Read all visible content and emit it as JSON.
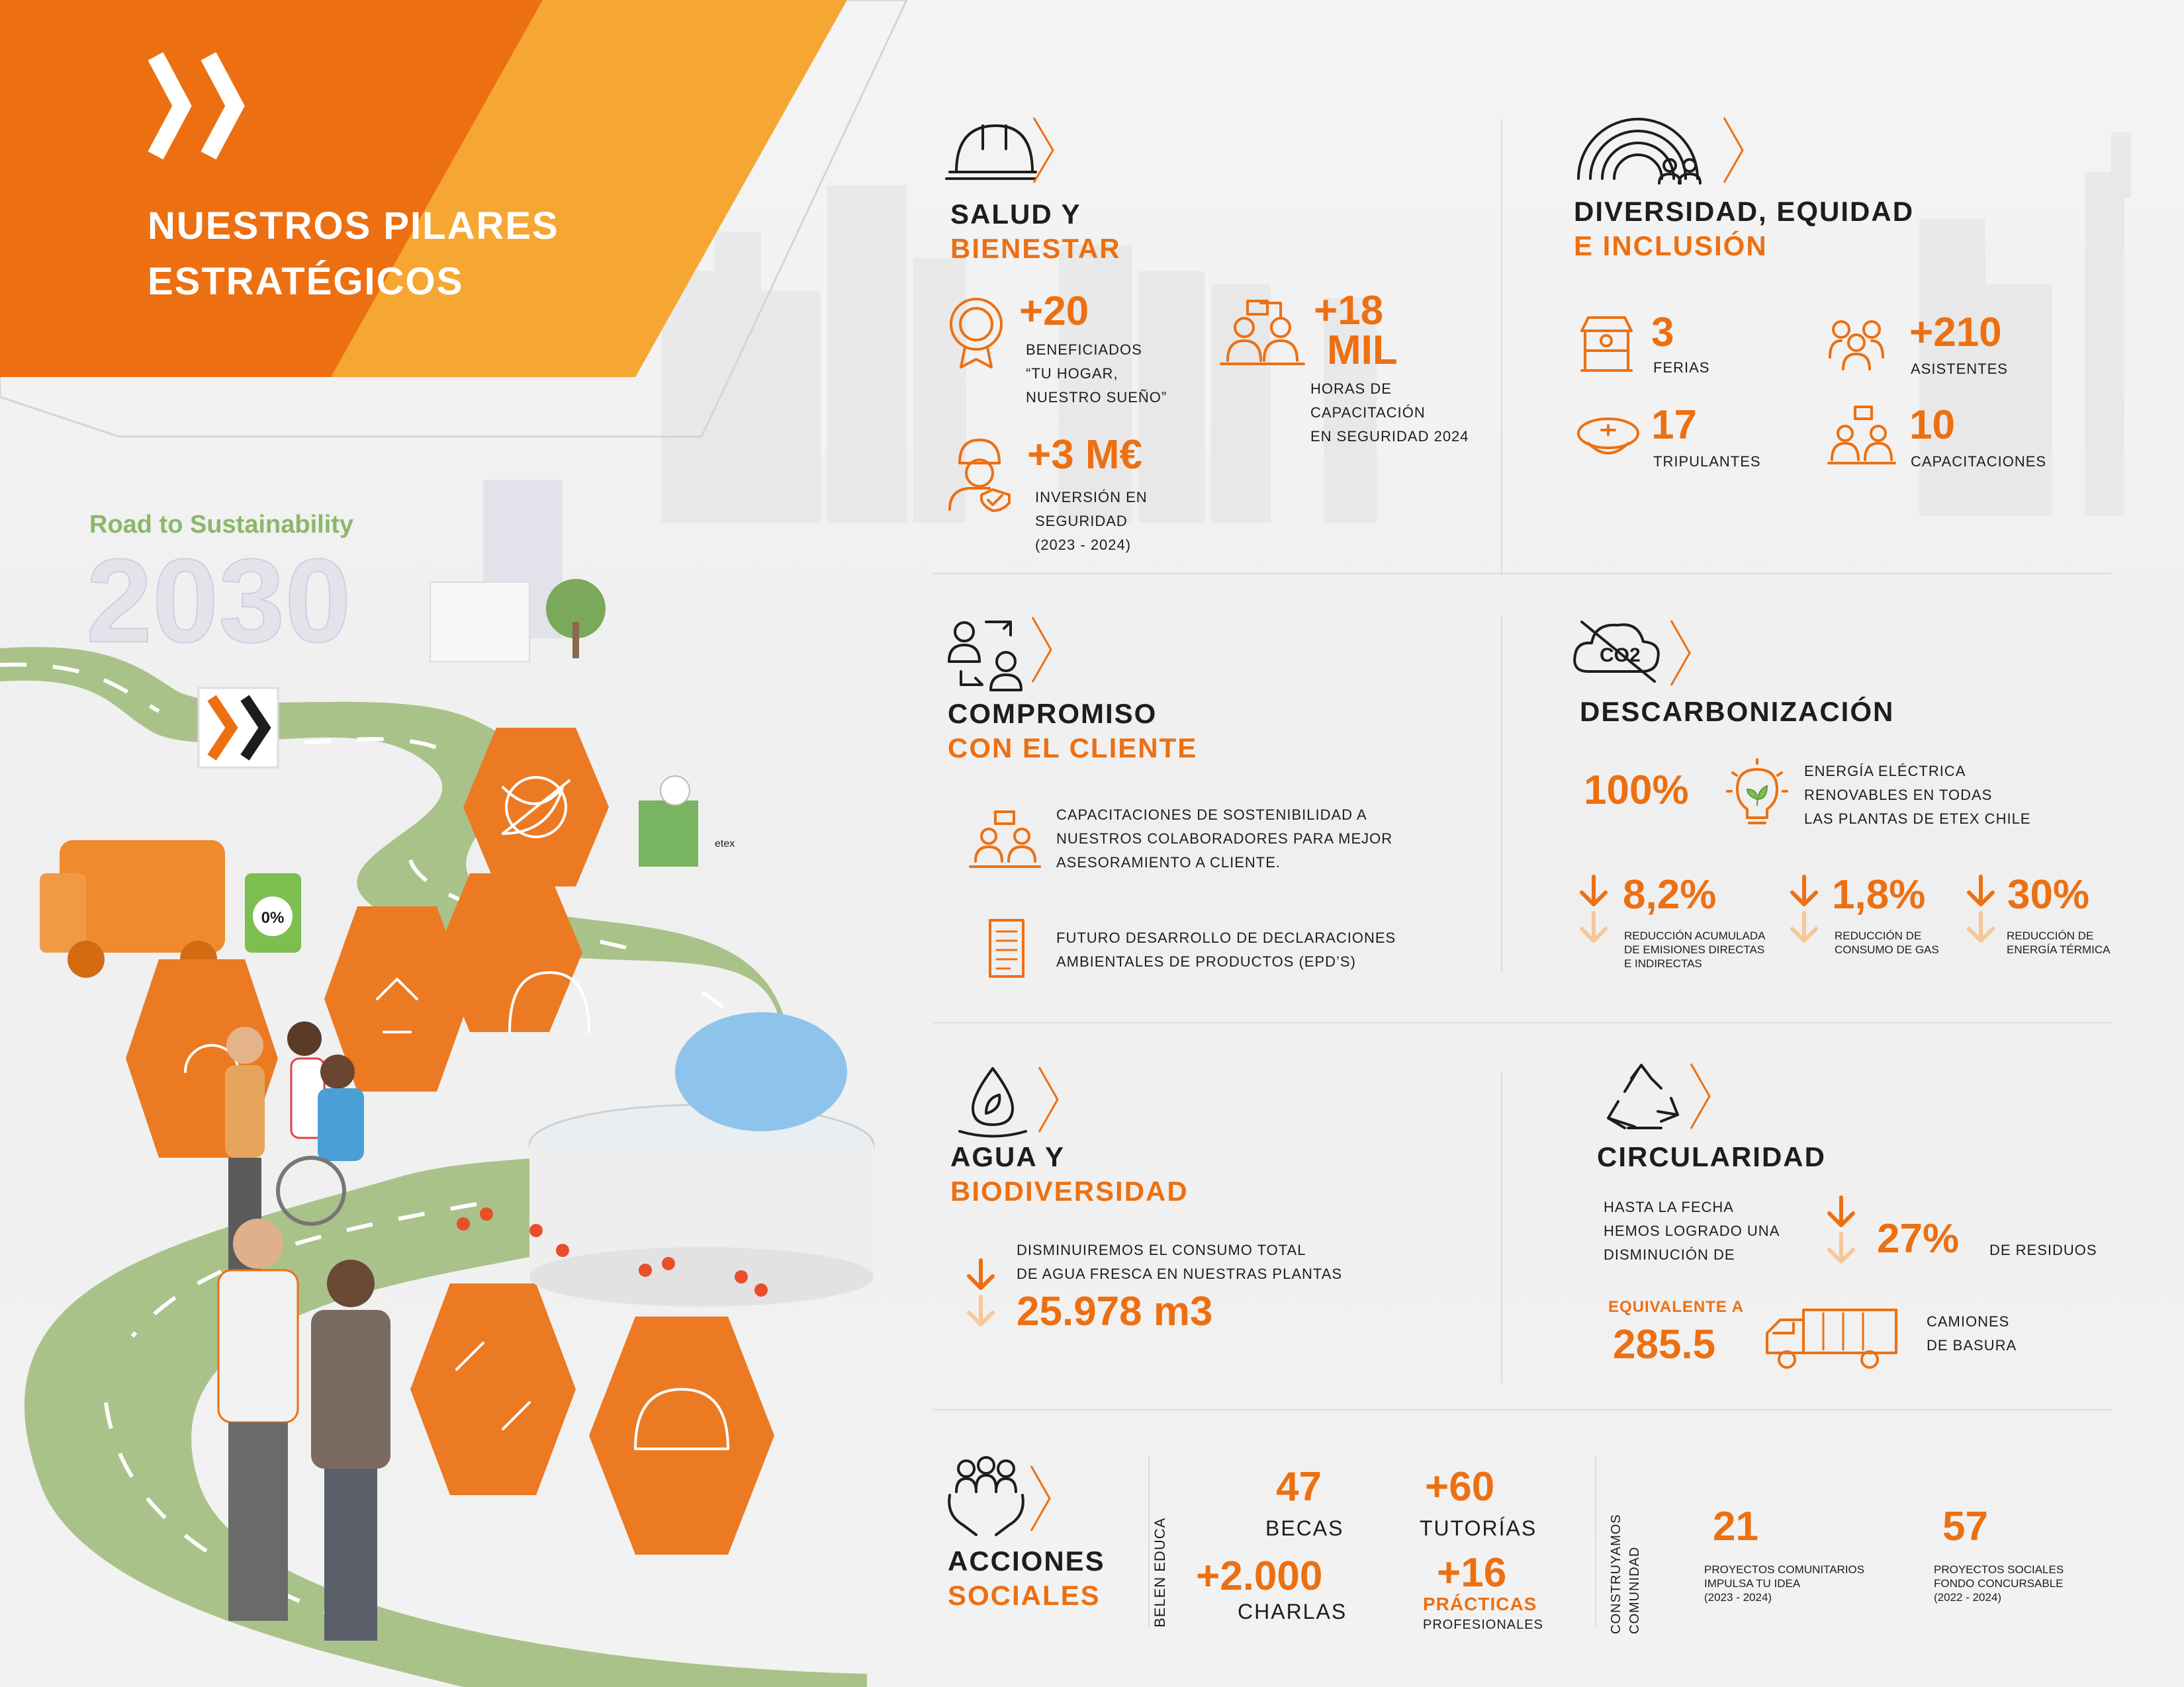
{
  "header": {
    "title_line1": "NUESTROS PILARES",
    "title_line2": "ESTRATÉGICOS"
  },
  "road": {
    "tag_line1": "Road to Sustainability",
    "tag_year": "2030",
    "bin_label": "0%",
    "co2_label": "CO2",
    "factory_label": "etex"
  },
  "salud": {
    "title_dark": "SALUD Y",
    "title_orange": "BIENESTAR",
    "stat1_value": "+20",
    "stat1_l1": "BENEFICIADOS",
    "stat1_l2": "“TU HOGAR,",
    "stat1_l3": "NUESTRO SUEÑO”",
    "stat2_value_l1": "+18",
    "stat2_value_l2": "MIL",
    "stat2_l1": "HORAS DE",
    "stat2_l2": "CAPACITACIÓN",
    "stat2_l3": "EN SEGURIDAD 2024",
    "stat3_value": "+3 M€",
    "stat3_l1": "INVERSIÓN EN",
    "stat3_l2": "SEGURIDAD",
    "stat3_l3": "(2023 - 2024)"
  },
  "diversidad": {
    "title_dark": "DIVERSIDAD, EQUIDAD",
    "title_orange": "E INCLUSIÓN",
    "ferias_value": "3",
    "ferias_label": "FERIAS",
    "asistentes_value": "+210",
    "asistentes_label": "ASISTENTES",
    "tripulantes_value": "17",
    "tripulantes_label": "TRIPULANTES",
    "capacitaciones_value": "10",
    "capacitaciones_label": "CAPACITACIONES"
  },
  "cliente": {
    "title_dark": "COMPROMISO",
    "title_orange": "CON EL CLIENTE",
    "item1_l1": "CAPACITACIONES DE SOSTENIBILIDAD A",
    "item1_l2": "NUESTROS COLABORADORES PARA MEJOR",
    "item1_l3": "ASESORAMIENTO A CLIENTE.",
    "item2_l1": "FUTURO DESARROLLO DE DECLARACIONES",
    "item2_l2": "AMBIENTALES DE PRODUCTOS (EPD’S)"
  },
  "descarbonizacion": {
    "title": "DESCARBONIZACIÓN",
    "icon_label": "CO2",
    "energy_value": "100%",
    "energy_l1": "ENERGÍA ELÉCTRICA",
    "energy_l2": "RENOVABLES EN TODAS",
    "energy_l3": "LAS PLANTAS DE ETEX CHILE",
    "r1_value": "8,2%",
    "r1_l1": "REDUCCIÓN ACUMULADA",
    "r1_l2": "DE EMISIONES DIRECTAS",
    "r1_l3": "E INDIRECTAS",
    "r2_value": "1,8%",
    "r2_l1": "REDUCCIÓN DE",
    "r2_l2": "CONSUMO DE GAS",
    "r3_value": "30%",
    "r3_l1": "REDUCCIÓN DE",
    "r3_l2": "ENERGÍA TÉRMICA"
  },
  "agua": {
    "title_dark": "AGUA Y",
    "title_orange": "BIODIVERSIDAD",
    "text_l1": "DISMINUIREMOS EL CONSUMO TOTAL",
    "text_l2": "DE AGUA FRESCA EN NUESTRAS PLANTAS",
    "value": "25.978 m3"
  },
  "circularidad": {
    "title": "CIRCULARIDAD",
    "text_l1": "HASTA LA FECHA",
    "text_l2": "HEMOS LOGRADO UNA",
    "text_l3": "DISMINUCIÓN DE",
    "value": "27%",
    "suffix": "DE RESIDUOS",
    "equiv_label": "EQUIVALENTE A",
    "equiv_value": "285.5",
    "trucks_l1": "CAMIONES",
    "trucks_l2": "DE BASURA"
  },
  "acciones": {
    "title_dark": "ACCIONES",
    "title_orange": "SOCIALES",
    "belen_label": "BELEN EDUCA",
    "becas_value": "47",
    "becas_label": "BECAS",
    "tutorias_value": "+60",
    "tutorias_label": "TUTORÍAS",
    "charlas_value": "+2.000",
    "charlas_label": "CHARLAS",
    "practicas_value": "+16",
    "practicas_label": "PRÁCTICAS",
    "practicas_sub": "PROFESIONALES",
    "construyamos_l1": "CONSTRUYAMOS",
    "construyamos_l2": "COMUNIDAD",
    "proj1_value": "21",
    "proj1_l1": "PROYECTOS COMUNITARIOS",
    "proj1_l2": "IMPULSA TU IDEA",
    "proj1_l3": "(2023 - 2024)",
    "proj2_value": "57",
    "proj2_l1": "PROYECTOS SOCIALES",
    "proj2_l2": "FONDO CONCURSABLE",
    "proj2_l3": "(2022 - 2024)"
  },
  "colors": {
    "orange": "#ec7012",
    "light_orange": "#f6a733",
    "dark": "#1d1d1b",
    "road_green": "#98b56f"
  }
}
